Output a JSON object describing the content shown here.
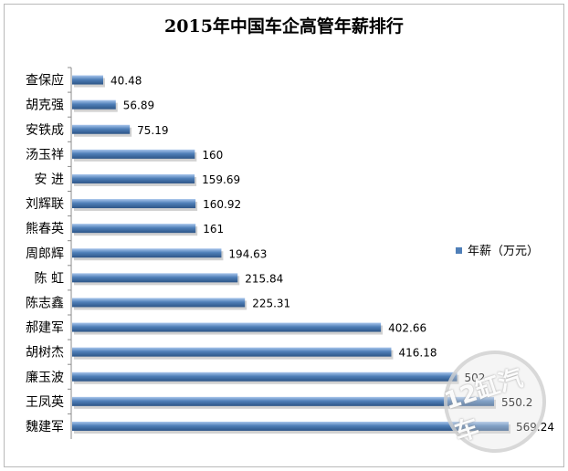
{
  "chart_data": {
    "type": "bar",
    "orientation": "horizontal",
    "title": "2015年中国车企高管年薪排行",
    "categories": [
      "查保应",
      "胡克强",
      "安铁成",
      "汤玉祥",
      "安 进",
      "刘辉联",
      "熊春英",
      "周郎辉",
      "陈 虹",
      "陈志鑫",
      "郝建军",
      "胡树杰",
      "廉玉波",
      "王凤英",
      "魏建军"
    ],
    "values": [
      40.48,
      56.89,
      75.19,
      160,
      159.69,
      160.92,
      161,
      194.63,
      215.84,
      225.31,
      402.66,
      416.18,
      502,
      550.2,
      569.24
    ],
    "value_labels": [
      "40.48",
      "56.89",
      "75.19",
      "160",
      "159.69",
      "160.92",
      "161",
      "194.63",
      "215.84",
      "225.31",
      "402.66",
      "416.18",
      "502",
      "550.2",
      "569.24"
    ],
    "series": [
      {
        "name": "年薪（万元）"
      }
    ],
    "xlim": [
      0,
      600
    ],
    "grid": false,
    "legend_position": "right",
    "bar_color": "#4f7fb8"
  },
  "watermark": {
    "text": "12缸汽车"
  }
}
